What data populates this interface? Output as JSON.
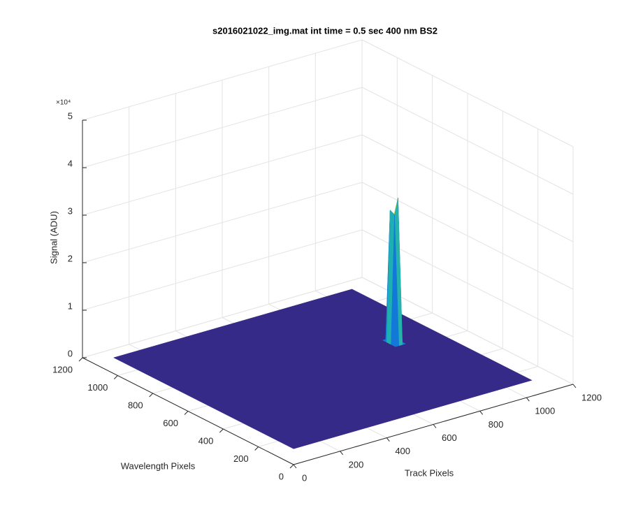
{
  "chart_data": {
    "type": "surface",
    "title": "s2016021022_img.mat int time = 0.5 sec  400 nm BS2",
    "x_label": "Track Pixels",
    "y_label": "Wavelength Pixels",
    "z_label": "Signal (ADU)",
    "z_exponent": "×10⁴",
    "x": [
      1,
      830,
      845,
      860,
      875,
      1024
    ],
    "y": [
      1,
      520,
      545,
      570,
      595,
      1024
    ],
    "z": [
      [
        3300,
        3300,
        3300,
        3300,
        3300,
        3300
      ],
      [
        3300,
        3300,
        3300,
        3300,
        3300,
        3300
      ],
      [
        3300,
        3300,
        30500,
        33800,
        3300,
        3300
      ],
      [
        3300,
        3300,
        31000,
        29500,
        3300,
        3300
      ],
      [
        3300,
        3300,
        3300,
        3300,
        3300,
        3300
      ],
      [
        3300,
        3300,
        3300,
        3300,
        3300,
        3300
      ]
    ],
    "xlim": [
      0,
      1200
    ],
    "ylim": [
      0,
      1200
    ],
    "zlim": [
      0,
      50000
    ],
    "xticks": [
      0,
      200,
      400,
      600,
      800,
      1000,
      1200
    ],
    "yticks": [
      0,
      200,
      400,
      600,
      800,
      1000,
      1200
    ],
    "zticks": [
      {
        "value": 0,
        "label": "0"
      },
      {
        "value": 10000,
        "label": "1"
      },
      {
        "value": 20000,
        "label": "2"
      },
      {
        "value": 30000,
        "label": "3"
      },
      {
        "value": 40000,
        "label": "4"
      },
      {
        "value": 50000,
        "label": "5"
      }
    ],
    "grid": true,
    "colormap": "parula"
  }
}
